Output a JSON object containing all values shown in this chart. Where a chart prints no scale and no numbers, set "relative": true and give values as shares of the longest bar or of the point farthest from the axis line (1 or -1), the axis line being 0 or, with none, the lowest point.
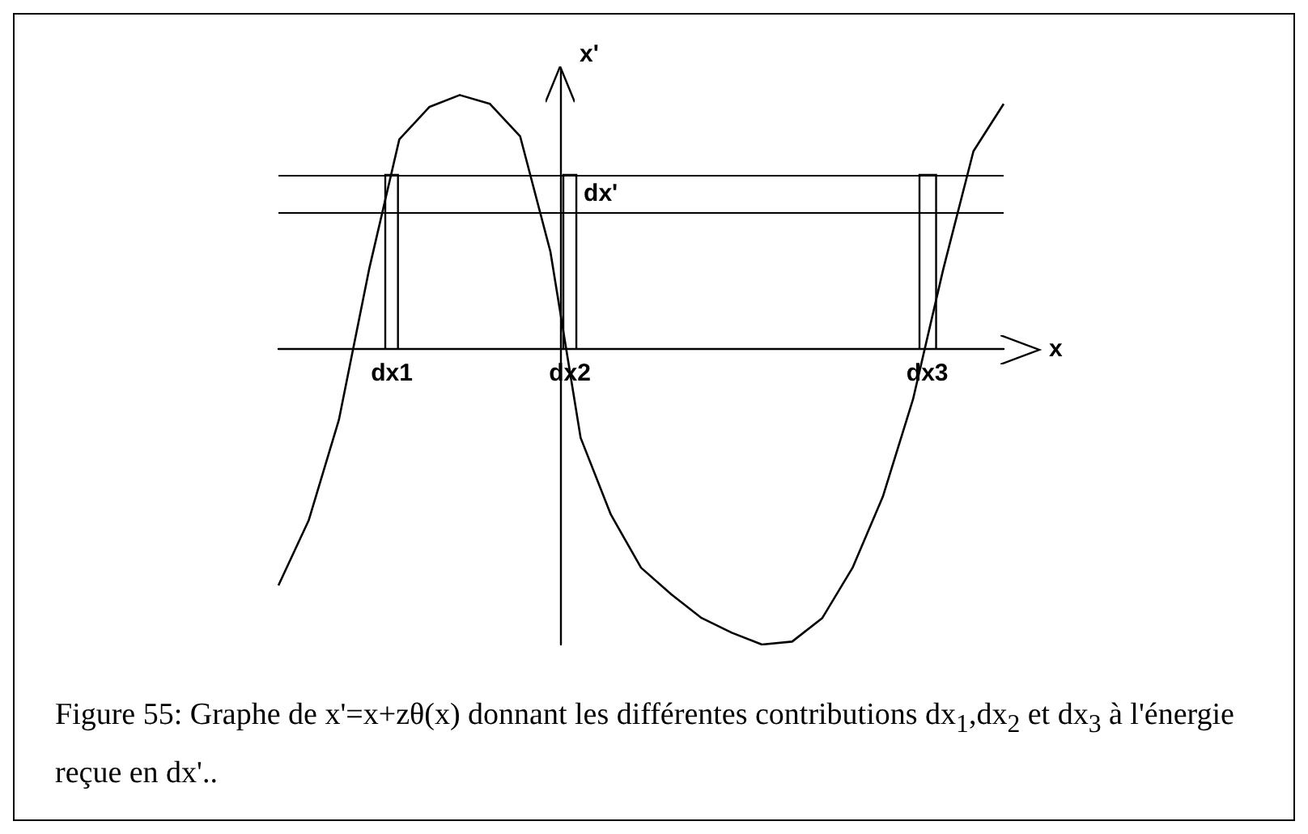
{
  "chart_data": {
    "type": "line",
    "relative": true,
    "title": "Figure 55: Graphe de x'=x+zθ(x) donnant les différentes contributions dx$_{1}$,dx$_{2}$ et dx$_{3}$ à l'énergie reçue en dx'..",
    "xlabel": "x",
    "ylabel": "x'",
    "marker": "none",
    "line_style": "solid",
    "categories": [
      null,
      null,
      null,
      null,
      null,
      null,
      null,
      null,
      null,
      null,
      null,
      null,
      null,
      null,
      null,
      null,
      null,
      null,
      null,
      null,
      null,
      null,
      null,
      null,
      null
    ],
    "series": [
      {
        "color": "#000000",
        "values": [
          -0.8,
          -0.58,
          -0.24,
          0.27,
          0.71,
          0.82,
          0.86,
          0.83,
          0.72,
          0.33,
          -0.3,
          -0.56,
          -0.74,
          -0.83,
          -0.91,
          -0.96,
          -1,
          -0.99,
          -0.91,
          -0.74,
          -0.5,
          -0.17,
          0.27,
          0.67,
          0.83
        ]
      }
    ],
    "ref_lines": [
      {
        "axis": "y",
        "value": 0.59,
        "color": "#000000"
      },
      {
        "axis": "y",
        "value": 0.46,
        "color": "#000000"
      }
    ],
    "annotations": [
      "dx1",
      "dx2",
      "dx3",
      "dx'"
    ]
  }
}
